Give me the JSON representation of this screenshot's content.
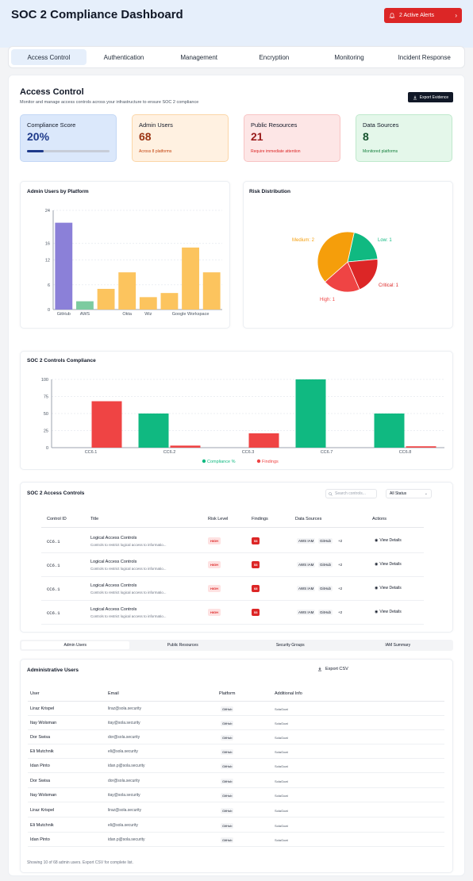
{
  "header": {
    "title": "SOC 2 Compliance Dashboard",
    "alert_label": "2 Active Alerts",
    "alert_icon": "bell-icon"
  },
  "tabs": [
    "Access Control",
    "Authentication",
    "Management",
    "Encryption",
    "Monitoring",
    "Incident Response"
  ],
  "active_tab": "Access Control",
  "section": {
    "title": "Access Control",
    "subtitle": "Monitor and manage access controls across your infrastructure to ensure SOC 2 compliance",
    "export_label": "Export Evidence"
  },
  "cards": [
    {
      "label": "Compliance Score",
      "value": "20%",
      "note": "",
      "progress": 0.2,
      "color": "#1e3a8a"
    },
    {
      "label": "Admin Users",
      "value": "68",
      "note": "Across 8 platforms",
      "color": "#9a3412"
    },
    {
      "label": "Public Resources",
      "value": "21",
      "note": "Require immediate attention",
      "color": "#991b1b"
    },
    {
      "label": "Data Sources",
      "value": "8",
      "note": "Monitored platforms",
      "color": "#14532d"
    }
  ],
  "admin_chart": {
    "title": "Admin Users by Platform",
    "yticks": [
      "24",
      "16",
      "12",
      "6",
      "0"
    ],
    "xlabels": [
      "GitHub",
      "AWS",
      "Okta",
      "Wiz",
      "Google Workspace"
    ]
  },
  "risk_chart": {
    "title": "Risk Distribution",
    "labels": [
      "Medium: 2",
      "Low: 1",
      "Critical: 1",
      "High: 1"
    ]
  },
  "controls_chart": {
    "title": "SOC 2 Controls Compliance",
    "yticks": [
      "100",
      "75",
      "50",
      "25",
      "0"
    ],
    "legend": [
      "Compliance %",
      "Findings"
    ]
  },
  "chart_data": [
    {
      "type": "bar",
      "title": "Admin Users by Platform",
      "categories": [
        "GitHub",
        "AWS",
        "",
        "Okta",
        "Wiz",
        "",
        "Google Workspace",
        ""
      ],
      "values": [
        21,
        2,
        5,
        9,
        3,
        4,
        15,
        9
      ],
      "colors": [
        "#8b80d8",
        "#7ccba0",
        "#fcc45e",
        "#fcc45e",
        "#fcc45e",
        "#fcc45e",
        "#fcc45e",
        "#fcc45e"
      ],
      "ylim": [
        0,
        24
      ]
    },
    {
      "type": "pie",
      "title": "Risk Distribution",
      "slices": [
        {
          "label": "Medium",
          "value": 2,
          "color": "#f59e0b"
        },
        {
          "label": "Low",
          "value": 1,
          "color": "#10b981"
        },
        {
          "label": "Critical",
          "value": 1,
          "color": "#dc2626"
        },
        {
          "label": "High",
          "value": 1,
          "color": "#ef4444"
        }
      ]
    },
    {
      "type": "bar",
      "title": "SOC 2 Controls Compliance",
      "categories": [
        "CC6.1",
        "CC6.2",
        "CC6.3",
        "CC6.7",
        "CC6.8"
      ],
      "series": [
        {
          "name": "Compliance %",
          "values": [
            0,
            50,
            0,
            100,
            50
          ],
          "color": "#10b981"
        },
        {
          "name": "Findings",
          "values": [
            68,
            3,
            21,
            0,
            2
          ],
          "color": "#ef4444"
        }
      ],
      "ylim": [
        0,
        100
      ]
    }
  ],
  "controls_table": {
    "title": "SOC 2 Access Controls",
    "search_placeholder": "Search controls...",
    "status_filter": "All Status",
    "columns": [
      "Control ID",
      "Title",
      "Risk Level",
      "Findings",
      "Data Sources",
      "Actions"
    ],
    "rows": [
      {
        "id": "CC6.1",
        "title": "Logical Access Controls",
        "desc": "Controls to restrict logical access to informatio...",
        "risk": "HIGH",
        "findings": "53",
        "src1": "AWS IAM",
        "src2": "GitHub",
        "more": "+2",
        "action": "View Details"
      },
      {
        "id": "CC6.1",
        "title": "Logical Access Controls",
        "desc": "Controls to restrict logical access to informatio...",
        "risk": "HIGH",
        "findings": "53",
        "src1": "AWS IAM",
        "src2": "GitHub",
        "more": "+2",
        "action": "View Details"
      },
      {
        "id": "CC6.1",
        "title": "Logical Access Controls",
        "desc": "Controls to restrict logical access to informatio...",
        "risk": "HIGH",
        "findings": "68",
        "src1": "AWS IAM",
        "src2": "GitHub",
        "more": "+2",
        "action": "View Details"
      },
      {
        "id": "CC6.1",
        "title": "Logical Access Controls",
        "desc": "Controls to restrict logical access to informatio...",
        "risk": "HIGH",
        "findings": "53",
        "src1": "AWS IAM",
        "src2": "GitHub",
        "more": "+2",
        "action": "View Details"
      }
    ]
  },
  "subtabs": [
    "Admin Users",
    "Public Resources",
    "Security Groups",
    "IAM Summary"
  ],
  "users_table": {
    "title": "Administrative Users",
    "export_label": "Export CSV",
    "columns": [
      "User",
      "Email",
      "Platform",
      "Additional Info"
    ],
    "rows": [
      {
        "name": "Liraz Krispel",
        "email": "liraz@sola.security",
        "platform": "GitHub",
        "info": "SolaGoat"
      },
      {
        "name": "Itay Wolsman",
        "email": "itay@sola.security",
        "platform": "GitHub",
        "info": "SolaGoat"
      },
      {
        "name": "Dor Swisa",
        "email": "dor@sola.security",
        "platform": "GitHub",
        "info": "SolaGoat"
      },
      {
        "name": "Eli Mutchnik",
        "email": "eli@sola.security",
        "platform": "GitHub",
        "info": "SolaGoat"
      },
      {
        "name": "Idan Pinto",
        "email": "idan.p@sola.security",
        "platform": "GitHub",
        "info": "SolaGoat"
      },
      {
        "name": "Dor Swisa",
        "email": "dor@sola.security",
        "platform": "GitHub",
        "info": "SolaGoat"
      },
      {
        "name": "Itay Wolsman",
        "email": "itay@sola.security",
        "platform": "GitHub",
        "info": "SolaGoat"
      },
      {
        "name": "Liraz Krispel",
        "email": "liraz@sola.security",
        "platform": "GitHub",
        "info": "SolaGoat"
      },
      {
        "name": "Eli Mutchnik",
        "email": "eli@sola.security",
        "platform": "GitHub",
        "info": "SolaGoat"
      },
      {
        "name": "Idan Pinto",
        "email": "idan.p@sola.security",
        "platform": "GitHub",
        "info": "SolaGoat"
      }
    ],
    "footer": "Showing 10 of 68 admin users. Export CSV for complete list."
  }
}
